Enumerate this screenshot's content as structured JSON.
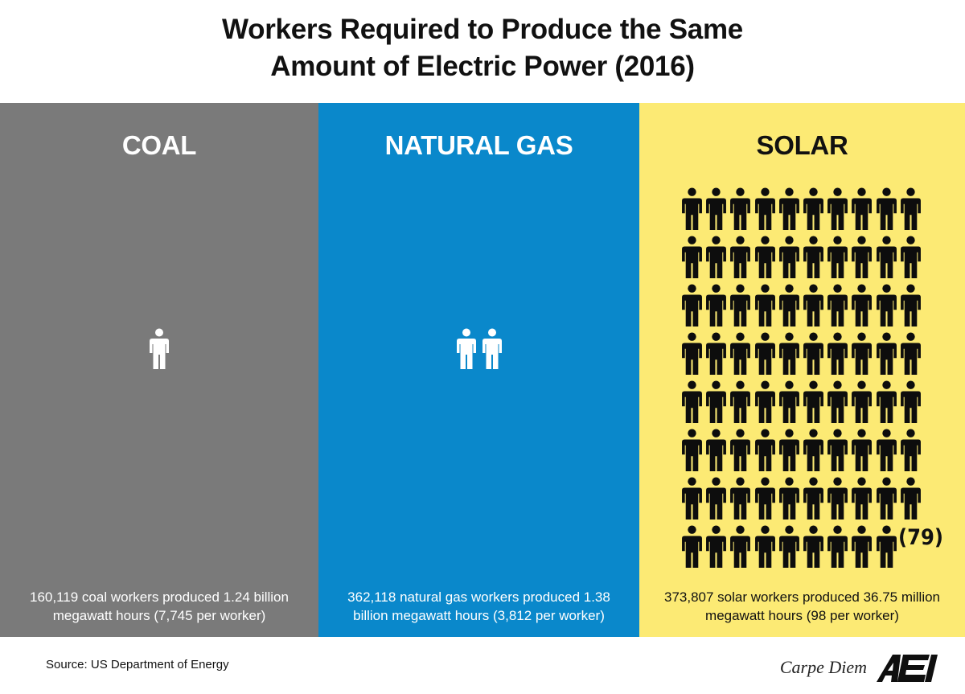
{
  "title": {
    "line1": "Workers Required to Produce the Same",
    "line2": "Amount of Electric Power (2016)"
  },
  "source": "Source: US Department of Energy",
  "brand": {
    "text": "Carpe Diem",
    "logo_text": "AEI"
  },
  "colors": {
    "coal": "#7a7a7a",
    "natural_gas": "#0a88cb",
    "solar": "#fcea74",
    "light_text": "#ffffff",
    "dark_text": "#111111"
  },
  "chart_data": {
    "type": "pictograph",
    "title": "Workers Required to Produce the Same Amount of Electric Power (2016)",
    "unit": "workers",
    "categories": [
      "COAL",
      "NATURAL GAS",
      "SOLAR"
    ],
    "values": [
      1,
      2,
      79
    ],
    "annotations": [
      "(79)"
    ],
    "descriptions": [
      "160,119 coal workers produced 1.24 billion megawatt hours (7,745 per worker)",
      "362,118 natural gas workers produced 1.38 billion megawatt hours (3,812 per worker)",
      "373,807 solar workers produced 36.75 million megawatt hours (98 per worker)"
    ],
    "source": "Source: US Department of Energy"
  },
  "panels": [
    {
      "key": "coal",
      "label": "COAL",
      "workers": 1,
      "description": "160,119 coal workers produced 1.24 billion megawatt hours (7,745 per worker)"
    },
    {
      "key": "natural_gas",
      "label": "NATURAL GAS",
      "workers": 2,
      "description": "362,118 natural gas workers produced 1.38 billion megawatt hours (3,812 per worker)"
    },
    {
      "key": "solar",
      "label": "SOLAR",
      "workers": 79,
      "count_label": "(79)",
      "description": "373,807 solar workers produced 36.75 million megawatt hours (98 per worker)"
    }
  ]
}
